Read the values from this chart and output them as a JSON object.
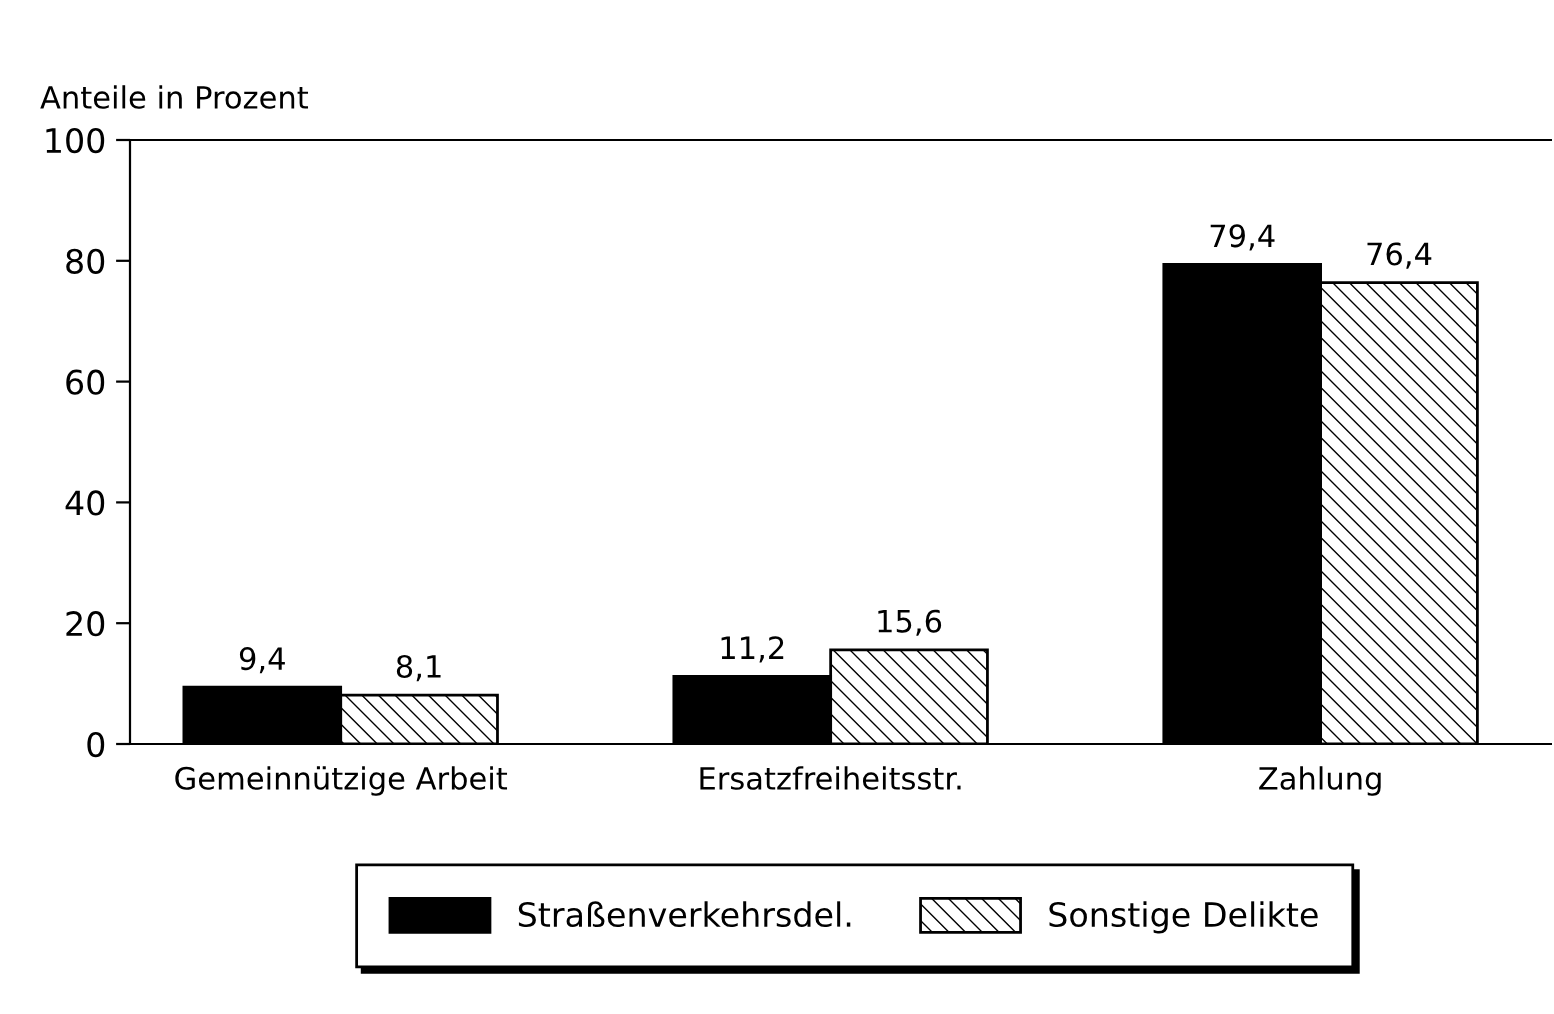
{
  "chart_data": {
    "type": "bar",
    "ylabel": "Anteile in Prozent",
    "categories": [
      "Gemeinnützige Arbeit",
      "Ersatzfreiheitsstr.",
      "Zahlung"
    ],
    "series": [
      {
        "name": "Straßenverkehrsdel.",
        "color": "#000000",
        "values": [
          9.4,
          11.2,
          79.4
        ],
        "value_labels": [
          "9,4",
          "11,2",
          "79,4"
        ]
      },
      {
        "name": "Sonstige Delikte",
        "color": "#000000",
        "values": [
          8.1,
          15.6,
          76.4
        ],
        "value_labels": [
          "8,1",
          "15,6",
          "76,4"
        ]
      }
    ],
    "ylim": [
      0,
      100
    ],
    "yticks": [
      0,
      20,
      40,
      60,
      80,
      100
    ],
    "grid": false,
    "legend": "bottom"
  }
}
